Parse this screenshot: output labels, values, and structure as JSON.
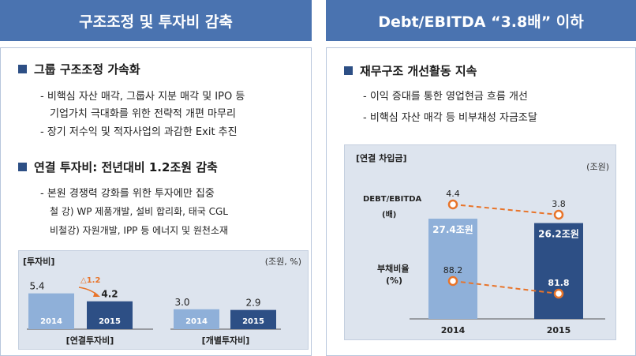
{
  "left": {
    "title": "구조조정 및 투자비 감축",
    "section1": {
      "heading": "그룹 구조조정 가속화",
      "lines": [
        "- 비핵심 자산 매각, 그룹사 지분 매각 및 IPO 등",
        "기업가치 극대화를 위한 전략적 개편 마무리",
        "- 장기 저수익 및 적자사업의 과감한 Exit 추진"
      ]
    },
    "section2": {
      "heading": "연결 투자비: 전년대비 1.2조원 감축",
      "lines": [
        "- 본원 경쟁력 강화를 위한 투자에만 집중",
        "철    강) WP 제품개발, 설비 합리화, 태국 CGL",
        "비철강) 자원개발, IPP 등 에너지 및 원천소재"
      ]
    },
    "chart_title": "[투자비]",
    "chart_unit": "(조원, %)"
  },
  "right": {
    "title": "Debt/EBITDA “3.8배” 이하",
    "section": {
      "heading": "재무구조 개선활동 지속",
      "lines": [
        "- 이익 증대를 통한 영업현금 흐름 개선",
        "- 비핵심 자산 매각 등 비부채성 자금조달"
      ]
    },
    "chart_title": "[연결 차입금]",
    "chart_unit": "(조원)",
    "label_debt": "DEBT/EBITDA",
    "label_debt_unit": "(배)",
    "label_ratio": "부채비율",
    "label_ratio_unit": "(%)"
  },
  "colors": {
    "header": "#4a73b0",
    "bar_light": "#8fb0d9",
    "bar_dark": "#2d4f85",
    "line_orange": "#e8742a"
  },
  "chart_data": [
    {
      "type": "bar",
      "xlabel": "[연결투자비]",
      "categories": [
        "2014",
        "2015"
      ],
      "values": [
        5.4,
        4.2
      ],
      "value_labels": [
        "5.4",
        "4.2"
      ],
      "annotation": "△1.2"
    },
    {
      "type": "bar",
      "xlabel": "[개별투자비]",
      "categories": [
        "2014",
        "2015"
      ],
      "values": [
        3.0,
        2.9
      ],
      "value_labels": [
        "3.0",
        "2.9"
      ]
    },
    {
      "type": "bar",
      "categories": [
        "2014",
        "2015"
      ],
      "values": [
        27.4,
        26.2
      ],
      "value_labels": [
        "27.4조원",
        "26.2조원"
      ],
      "lines": [
        {
          "values": [
            4.4,
            3.8
          ],
          "labels": [
            "4.4",
            "3.8"
          ]
        },
        {
          "values": [
            88.2,
            81.8
          ],
          "labels": [
            "88.2",
            "81.8"
          ]
        }
      ]
    }
  ]
}
